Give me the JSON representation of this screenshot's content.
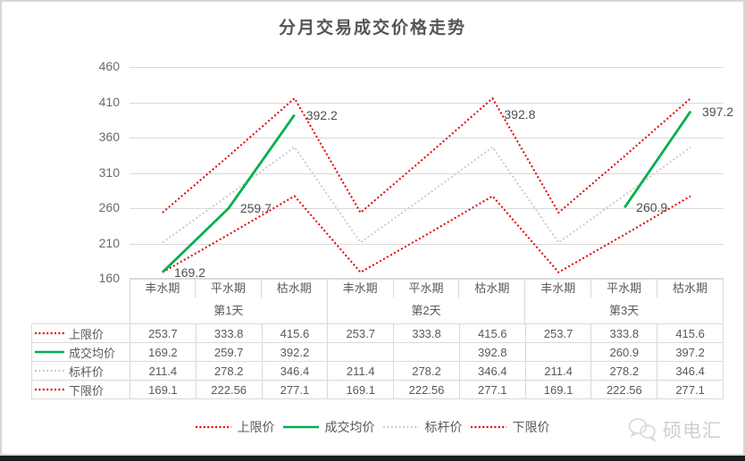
{
  "title": "分月交易成交价格走势",
  "watermark": {
    "brand": "硕电汇",
    "icon": "chat-bubbles"
  },
  "colors": {
    "upper_limit": "#e60000",
    "deal_avg": "#00b050",
    "benchmark": "#cccccc",
    "lower_limit": "#e60000",
    "grid": "#d9d9d9",
    "text": "#595959"
  },
  "chart_data": {
    "type": "line",
    "title": "分月交易成交价格走势",
    "categories": [
      "丰水期",
      "平水期",
      "枯水期",
      "丰水期",
      "平水期",
      "枯水期",
      "丰水期",
      "平水期",
      "枯水期"
    ],
    "group_labels": [
      "第1天",
      "第2天",
      "第3天"
    ],
    "ylim": [
      160,
      460
    ],
    "yticks": [
      460,
      410,
      360,
      310,
      260,
      210,
      160
    ],
    "grid": true,
    "legend_position": "bottom",
    "series": [
      {
        "name": "上限价",
        "style": "dotted",
        "color": "#e60000",
        "values": [
          253.7,
          333.8,
          415.6,
          253.7,
          333.8,
          415.6,
          253.7,
          333.8,
          415.6
        ],
        "table_values": [
          "253.7",
          "333.8",
          "415.6",
          "253.7",
          "333.8",
          "415.6",
          "253.7",
          "333.8",
          "415.6"
        ]
      },
      {
        "name": "成交均价",
        "style": "solid",
        "color": "#00b050",
        "values": [
          169.2,
          259.7,
          392.2,
          null,
          null,
          392.8,
          null,
          260.9,
          397.2
        ],
        "table_values": [
          "169.2",
          "259.7",
          "392.2",
          "",
          "",
          "392.8",
          "",
          "260.9",
          "397.2"
        ],
        "point_labels": [
          "169.2",
          "259.7",
          "392.2",
          "",
          "",
          "392.8",
          "",
          "260.9",
          "397.2"
        ]
      },
      {
        "name": "标杆价",
        "style": "dotted",
        "color": "#cccccc",
        "values": [
          211.4,
          278.2,
          346.4,
          211.4,
          278.2,
          346.4,
          211.4,
          278.2,
          346.4
        ],
        "table_values": [
          "211.4",
          "278.2",
          "346.4",
          "211.4",
          "278.2",
          "346.4",
          "211.4",
          "278.2",
          "346.4"
        ]
      },
      {
        "name": "下限价",
        "style": "dotted",
        "color": "#e60000",
        "values": [
          169.1,
          222.56,
          277.1,
          169.1,
          222.56,
          277.1,
          169.1,
          222.56,
          277.1
        ],
        "table_values": [
          "169.1",
          "222.56",
          "277.1",
          "169.1",
          "222.56",
          "277.1",
          "169.1",
          "222.56",
          "277.1"
        ]
      }
    ]
  },
  "legend_items": [
    "上限价",
    "成交均价",
    "标杆价",
    "下限价"
  ]
}
